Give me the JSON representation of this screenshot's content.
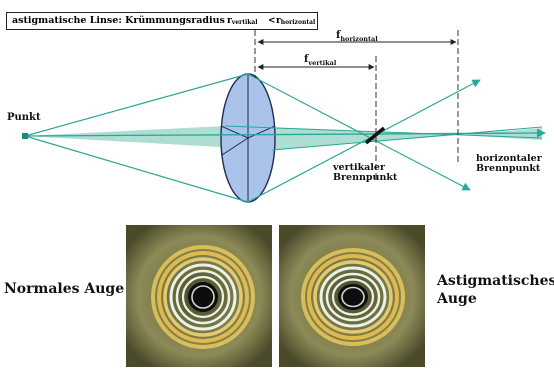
{
  "title": {
    "prefix": "astigmatische Linse: Krümmungsradius",
    "r_vert": "r",
    "r_vert_sub": "vertikal",
    "lt": "<",
    "r_horz": "r",
    "r_horz_sub": "horizontal"
  },
  "labels": {
    "point": "Punkt",
    "f_horizontal": "f",
    "f_horizontal_sub": "horizontal",
    "f_vertical": "f",
    "f_vertical_sub": "vertikal",
    "vertical_focus_1": "vertikaler",
    "vertical_focus_2": "Brennpunkt",
    "horizontal_focus_1": "horizontaler",
    "horizontal_focus_2": "Brennpunkt"
  },
  "eyes": {
    "normal_label": "Normales Auge",
    "astig_label_1": "Astigmatisches",
    "astig_label_2": "Auge"
  },
  "colors": {
    "ray": "#2aa796",
    "cone_fill": "#9fd8c9",
    "lens_fill": "#a9c3ea",
    "lens_stroke": "#1f2a55",
    "iris": "#6a6a3c",
    "ring_gold": "#e7c85a",
    "ring_white": "#eaf2ea"
  }
}
